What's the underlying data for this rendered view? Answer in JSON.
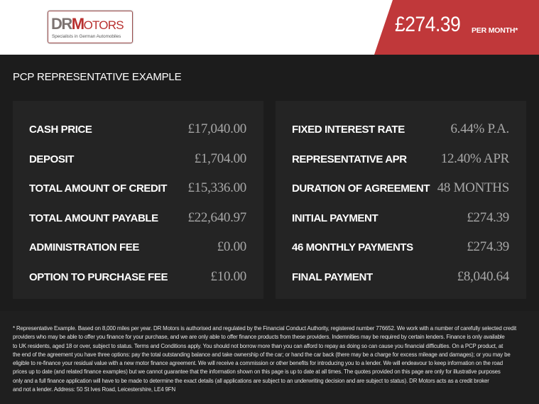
{
  "header": {
    "logo": {
      "brand_dr": "DR",
      "brand_m": "M",
      "brand_otors": "OTORS",
      "tagline": "Specialists in German Automobiles"
    },
    "monthly_price": "£274.39",
    "per_month_label": "PER MONTH*",
    "accent_color": "#c0383a"
  },
  "section_title": "PCP REPRESENTATIVE EXAMPLE",
  "left_panel": [
    {
      "label": "CASH PRICE",
      "value": "£17,040.00"
    },
    {
      "label": "DEPOSIT",
      "value": "£1,704.00"
    },
    {
      "label": "TOTAL AMOUNT OF CREDIT",
      "value": "£15,336.00"
    },
    {
      "label": "TOTAL AMOUNT PAYABLE",
      "value": "£22,640.97"
    },
    {
      "label": "ADMINISTRATION FEE",
      "value": "£0.00"
    },
    {
      "label": "OPTION TO PURCHASE FEE",
      "value": "£10.00"
    }
  ],
  "right_panel": [
    {
      "label": "FIXED INTEREST RATE",
      "value": "6.44% P.A."
    },
    {
      "label": "REPRESENTATIVE APR",
      "value": "12.40% APR"
    },
    {
      "label": "DURATION OF AGREEMENT",
      "value": "48 MONTHS"
    },
    {
      "label": "INITIAL PAYMENT",
      "value": "£274.39"
    },
    {
      "label": "46 MONTHLY PAYMENTS",
      "value": "£274.39"
    },
    {
      "label": "FINAL PAYMENT",
      "value": "£8,040.64"
    }
  ],
  "footer_lines": [
    "* Representative Example. Based on 8,000 miles per year. DR Motors is authorised and regulated by the Financial Conduct Authority, registered number 776652. We work with a number of carefully selected credit",
    "providers who may be able to offer you finance for your purchase, and we are only able to offer finance products from these providers. Indemnities may be required by certain lenders. Finance is only available",
    "to UK residents, aged 18 or over, subject to status. Terms and Conditions apply. You should not borrow more than you can afford to repay as doing so can cause you financial difficulties. On a PCP product, at",
    "the end of the agreement you have three options: pay the total outstanding balance and take ownership of the car; or hand the car back (there may be a charge for excess mileage and damages); or you may be",
    "eligible to re-finance your residual value with a new motor finance agreement. We will receive a commission or other benefits for introducing you to a lender. We will endeavour to keep information on the road",
    "prices up to date (and related finance examples) but we cannot guarantee that the information shown on this page is up to date at all times. The quotes provided on this page are only for illustrative purposes",
    "only and a full finance application will have to be made to determine the exact details (all applications are subject to an underwriting decision and are subject to status). DR Motors acts as a credit broker",
    "and not a lender. Address: 50 St Ives Road, Leicestershire, LE4 9FN"
  ]
}
